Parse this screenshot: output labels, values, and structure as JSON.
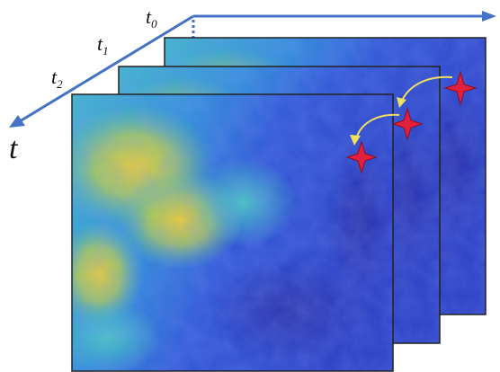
{
  "axis": {
    "labels": [
      {
        "base": "t",
        "sub": "0"
      },
      {
        "base": "t",
        "sub": "1"
      },
      {
        "base": "t",
        "sub": "2"
      }
    ],
    "time": "t"
  }
}
